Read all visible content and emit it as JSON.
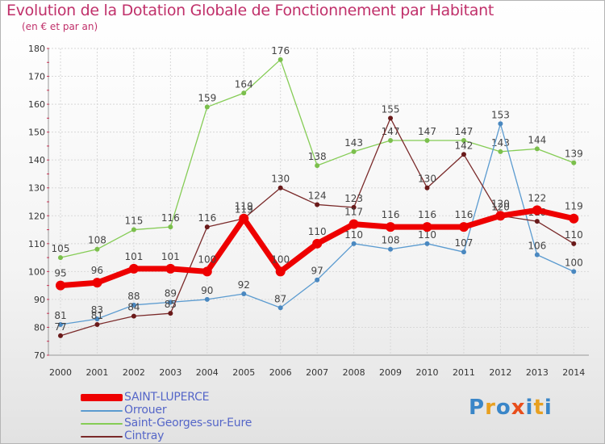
{
  "chart_data": {
    "type": "line",
    "title": "Evolution de la Dotation Globale de Fonctionnement par Habitant",
    "subtitle": "(en € et par an)",
    "x": [
      "2000",
      "2001",
      "2002",
      "2003",
      "2004",
      "2005",
      "2006",
      "2007",
      "2008",
      "2009",
      "2010",
      "2011",
      "2012",
      "2013",
      "2014"
    ],
    "ylim": [
      70,
      180
    ],
    "yticks": [
      70,
      80,
      90,
      100,
      110,
      120,
      130,
      140,
      150,
      160,
      170,
      180
    ],
    "grid": true,
    "legend_position": "bottom-left",
    "series": [
      {
        "name": "Saint-Georges-sur-Eure",
        "color": "#85cc55",
        "marker": "#7bbf4c",
        "label_color": "#444444",
        "values": [
          105,
          108,
          115,
          116,
          159,
          164,
          176,
          138,
          143,
          147,
          147,
          147,
          143,
          144,
          139
        ],
        "labels": [
          "105",
          "108",
          "115",
          "116",
          "159",
          "164",
          "176",
          "138",
          "143",
          "147",
          "147",
          "147",
          "143",
          "144",
          "139"
        ]
      },
      {
        "name": "Orrouer",
        "color": "#5b9bd0",
        "marker": "#4a88c0",
        "label_color": "#444444",
        "values": [
          81,
          83,
          88,
          89,
          90,
          92,
          87,
          97,
          110,
          108,
          110,
          107,
          153,
          106,
          100
        ],
        "labels": [
          "81",
          "83",
          "88",
          "89",
          "90",
          "92",
          "87",
          "97",
          "110",
          "108",
          "110",
          "107",
          "153",
          "106",
          "100"
        ]
      },
      {
        "name": "Cintray",
        "color": "#7a2a2a",
        "marker": "#6a1a1a",
        "label_color": "#444444",
        "values": [
          77,
          81,
          84,
          85,
          116,
          119,
          130,
          124,
          123,
          155,
          130,
          142,
          120,
          118,
          110
        ],
        "labels": [
          "77",
          "81",
          "84",
          "85",
          "116",
          "119",
          "130",
          "124",
          "123",
          "155",
          "130",
          "142",
          "120",
          "118",
          "110"
        ]
      },
      {
        "name": "SAINT-LUPERCE",
        "color": "#ee0000",
        "marker": "#ee0000",
        "label_color": "#444444",
        "values": [
          95,
          96,
          101,
          101,
          100,
          119,
          100,
          110,
          117,
          116,
          116,
          116,
          120,
          122,
          119
        ],
        "labels": [
          "95",
          "96",
          "101",
          "101",
          "100",
          "119",
          "100",
          "110",
          "117",
          "116",
          "116",
          "116",
          "120",
          "122",
          "119"
        ]
      }
    ],
    "legend": [
      {
        "name": "SAINT-LUPERCE",
        "color": "#ee0000"
      },
      {
        "name": "Orrouer",
        "color": "#5b9bd0"
      },
      {
        "name": "Saint-Georges-sur-Eure",
        "color": "#85cc55"
      },
      {
        "name": "Cintray",
        "color": "#7a2a2a"
      }
    ]
  },
  "logo": {
    "letters": [
      "P",
      "r",
      "o",
      "x",
      "i",
      "t",
      "i"
    ],
    "colors": [
      "#3a86c8",
      "#e8a020",
      "#3a86c8",
      "#e84e1b",
      "#3a86c8",
      "#e8a020",
      "#3a86c8"
    ]
  }
}
